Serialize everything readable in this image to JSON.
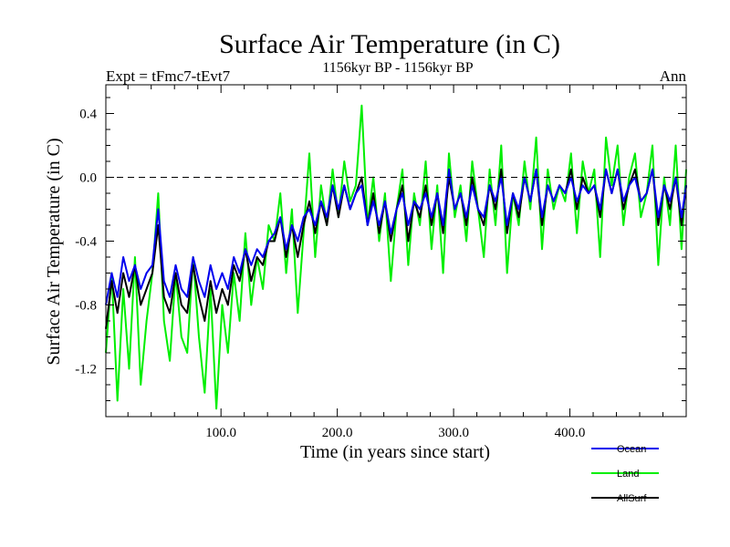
{
  "chart_data": {
    "type": "line",
    "title": "Surface Air Temperature (in C)",
    "subtitle": "1156kyr BP - 1156kyr BP",
    "expt_label": "Expt = tFmc7-tEvt7",
    "period_label": "Ann",
    "xlabel": "Time (in years since start)",
    "ylabel": "Surface Air Temperature (in C)",
    "xlim": [
      1,
      500
    ],
    "ylim": [
      -1.5,
      0.58
    ],
    "xticks": [
      100,
      200,
      300,
      400
    ],
    "xtick_labels": [
      "100.0",
      "200.0",
      "300.0",
      "400.0"
    ],
    "yticks": [
      0.4,
      0.0,
      -0.4,
      -0.8,
      -1.2
    ],
    "ytick_labels": [
      "0.4",
      "0.0",
      "-0.4",
      "-0.8",
      "-1.2"
    ],
    "reference_line": 0.0,
    "legend_position": "bottom-right",
    "series": [
      {
        "name": "Land",
        "color": "#00ee00",
        "x": [
          1,
          6,
          11,
          16,
          21,
          26,
          31,
          36,
          41,
          46,
          51,
          56,
          61,
          66,
          71,
          76,
          81,
          86,
          91,
          96,
          101,
          106,
          111,
          116,
          121,
          126,
          131,
          136,
          141,
          146,
          151,
          156,
          161,
          166,
          171,
          176,
          181,
          186,
          191,
          196,
          201,
          206,
          211,
          216,
          221,
          226,
          231,
          236,
          241,
          246,
          251,
          256,
          261,
          266,
          271,
          276,
          281,
          286,
          291,
          296,
          301,
          306,
          311,
          316,
          321,
          326,
          331,
          336,
          341,
          346,
          351,
          356,
          361,
          366,
          371,
          376,
          381,
          386,
          391,
          396,
          401,
          406,
          411,
          416,
          421,
          426,
          431,
          436,
          441,
          446,
          451,
          456,
          461,
          466,
          471,
          476,
          481,
          486,
          491,
          496,
          500
        ],
        "values": [
          -1.1,
          -0.6,
          -1.4,
          -0.7,
          -1.2,
          -0.5,
          -1.3,
          -0.9,
          -0.6,
          -0.1,
          -0.9,
          -1.15,
          -0.6,
          -1.0,
          -1.1,
          -0.5,
          -1.0,
          -1.35,
          -0.7,
          -1.45,
          -0.8,
          -1.1,
          -0.6,
          -0.9,
          -0.35,
          -0.8,
          -0.5,
          -0.7,
          -0.3,
          -0.4,
          -0.1,
          -0.6,
          -0.2,
          -0.85,
          -0.35,
          0.15,
          -0.5,
          -0.05,
          -0.3,
          0.05,
          -0.25,
          0.1,
          -0.15,
          -0.05,
          0.45,
          -0.3,
          0.0,
          -0.4,
          -0.1,
          -0.65,
          -0.2,
          0.05,
          -0.55,
          -0.1,
          -0.3,
          0.1,
          -0.45,
          -0.05,
          -0.6,
          0.15,
          -0.25,
          -0.05,
          -0.4,
          0.1,
          -0.2,
          -0.5,
          0.05,
          -0.3,
          0.2,
          -0.6,
          -0.1,
          -0.3,
          0.1,
          -0.2,
          0.25,
          -0.45,
          0.05,
          -0.2,
          -0.05,
          -0.15,
          0.15,
          -0.35,
          0.1,
          -0.1,
          0.05,
          -0.5,
          0.25,
          -0.05,
          0.2,
          -0.3,
          0.0,
          0.15,
          -0.25,
          -0.1,
          0.2,
          -0.55,
          0.0,
          -0.3,
          0.2,
          -0.45,
          0.05
        ]
      },
      {
        "name": "AllSurf",
        "color": "#000000",
        "x": [
          1,
          6,
          11,
          16,
          21,
          26,
          31,
          36,
          41,
          46,
          51,
          56,
          61,
          66,
          71,
          76,
          81,
          86,
          91,
          96,
          101,
          106,
          111,
          116,
          121,
          126,
          131,
          136,
          141,
          146,
          151,
          156,
          161,
          166,
          171,
          176,
          181,
          186,
          191,
          196,
          201,
          206,
          211,
          216,
          221,
          226,
          231,
          236,
          241,
          246,
          251,
          256,
          261,
          266,
          271,
          276,
          281,
          286,
          291,
          296,
          301,
          306,
          311,
          316,
          321,
          326,
          331,
          336,
          341,
          346,
          351,
          356,
          361,
          366,
          371,
          376,
          381,
          386,
          391,
          396,
          401,
          406,
          411,
          416,
          421,
          426,
          431,
          436,
          441,
          446,
          451,
          456,
          461,
          466,
          471,
          476,
          481,
          486,
          491,
          496,
          500
        ],
        "values": [
          -0.95,
          -0.65,
          -0.85,
          -0.6,
          -0.75,
          -0.55,
          -0.8,
          -0.7,
          -0.6,
          -0.3,
          -0.75,
          -0.85,
          -0.6,
          -0.8,
          -0.85,
          -0.55,
          -0.75,
          -0.9,
          -0.65,
          -0.85,
          -0.7,
          -0.8,
          -0.55,
          -0.65,
          -0.45,
          -0.65,
          -0.5,
          -0.55,
          -0.4,
          -0.4,
          -0.25,
          -0.5,
          -0.3,
          -0.5,
          -0.3,
          -0.15,
          -0.35,
          -0.15,
          -0.3,
          -0.05,
          -0.25,
          -0.05,
          -0.2,
          -0.1,
          0.0,
          -0.3,
          -0.1,
          -0.35,
          -0.15,
          -0.4,
          -0.2,
          -0.05,
          -0.4,
          -0.15,
          -0.25,
          -0.05,
          -0.3,
          -0.1,
          -0.35,
          0.0,
          -0.2,
          -0.1,
          -0.3,
          0.0,
          -0.2,
          -0.3,
          -0.05,
          -0.2,
          0.05,
          -0.35,
          -0.1,
          -0.25,
          0.0,
          -0.15,
          0.05,
          -0.3,
          -0.05,
          -0.15,
          -0.05,
          -0.1,
          0.05,
          -0.2,
          0.0,
          -0.1,
          -0.05,
          -0.25,
          0.05,
          -0.1,
          0.05,
          -0.2,
          -0.05,
          0.05,
          -0.15,
          -0.1,
          0.05,
          -0.3,
          -0.05,
          -0.2,
          0.0,
          -0.3,
          -0.05
        ]
      },
      {
        "name": "Ocean",
        "color": "#0000ee",
        "x": [
          1,
          6,
          11,
          16,
          21,
          26,
          31,
          36,
          41,
          46,
          51,
          56,
          61,
          66,
          71,
          76,
          81,
          86,
          91,
          96,
          101,
          106,
          111,
          116,
          121,
          126,
          131,
          136,
          141,
          146,
          151,
          156,
          161,
          166,
          171,
          176,
          181,
          186,
          191,
          196,
          201,
          206,
          211,
          216,
          221,
          226,
          231,
          236,
          241,
          246,
          251,
          256,
          261,
          266,
          271,
          276,
          281,
          286,
          291,
          296,
          301,
          306,
          311,
          316,
          321,
          326,
          331,
          336,
          341,
          346,
          351,
          356,
          361,
          366,
          371,
          376,
          381,
          386,
          391,
          396,
          401,
          406,
          411,
          416,
          421,
          426,
          431,
          436,
          441,
          446,
          451,
          456,
          461,
          466,
          471,
          476,
          481,
          486,
          491,
          496,
          500
        ],
        "values": [
          -0.8,
          -0.6,
          -0.75,
          -0.5,
          -0.65,
          -0.55,
          -0.7,
          -0.6,
          -0.55,
          -0.2,
          -0.65,
          -0.75,
          -0.55,
          -0.7,
          -0.75,
          -0.5,
          -0.65,
          -0.75,
          -0.55,
          -0.7,
          -0.6,
          -0.7,
          -0.5,
          -0.6,
          -0.45,
          -0.55,
          -0.45,
          -0.5,
          -0.4,
          -0.35,
          -0.25,
          -0.45,
          -0.3,
          -0.4,
          -0.25,
          -0.2,
          -0.3,
          -0.15,
          -0.25,
          -0.05,
          -0.2,
          -0.05,
          -0.2,
          -0.1,
          -0.05,
          -0.3,
          -0.15,
          -0.3,
          -0.15,
          -0.35,
          -0.2,
          -0.1,
          -0.3,
          -0.15,
          -0.2,
          -0.1,
          -0.25,
          -0.1,
          -0.3,
          0.05,
          -0.2,
          -0.1,
          -0.25,
          -0.05,
          -0.2,
          -0.25,
          -0.05,
          -0.15,
          0.0,
          -0.3,
          -0.1,
          -0.2,
          0.0,
          -0.15,
          0.05,
          -0.25,
          -0.05,
          -0.15,
          -0.05,
          -0.1,
          0.0,
          -0.15,
          -0.05,
          -0.1,
          -0.05,
          -0.2,
          0.05,
          -0.1,
          0.05,
          -0.15,
          -0.05,
          0.0,
          -0.15,
          -0.1,
          0.05,
          -0.25,
          -0.05,
          -0.15,
          0.0,
          -0.25,
          -0.05
        ]
      }
    ],
    "legend": [
      {
        "name": "Ocean",
        "color": "#0000ee"
      },
      {
        "name": "Land",
        "color": "#00ee00"
      },
      {
        "name": "AllSurf",
        "color": "#000000"
      }
    ]
  }
}
